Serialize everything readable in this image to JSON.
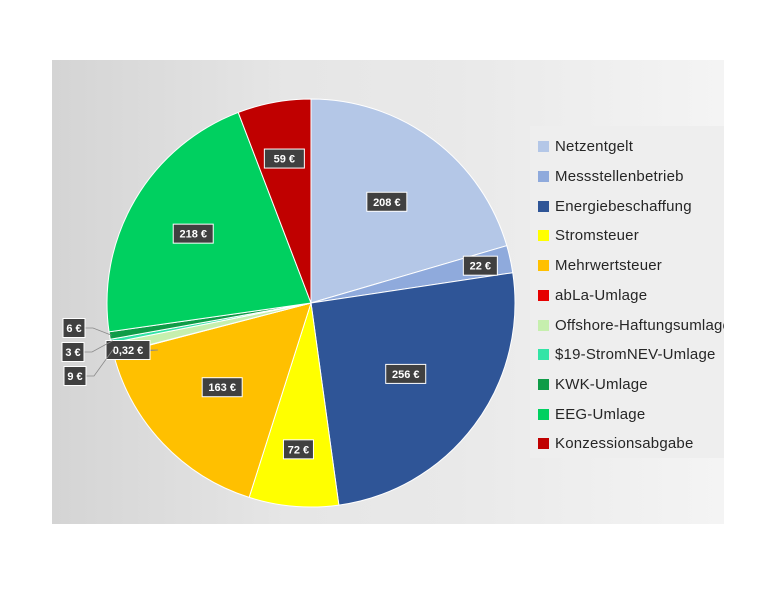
{
  "chart_data": {
    "type": "pie",
    "title": "",
    "start_angle_deg": 0,
    "direction": "clockwise",
    "legend_position": "right",
    "slices": [
      {
        "name": "Netzentgelt",
        "value": 208,
        "label": "208 €",
        "color": "#b4c7e7"
      },
      {
        "name": "Messstellenbetrieb",
        "value": 22,
        "label": "22 €",
        "color": "#8faadc"
      },
      {
        "name": "Energiebeschaffung",
        "value": 256,
        "label": "256 €",
        "color": "#2f5597"
      },
      {
        "name": "Stromsteuer",
        "value": 72,
        "label": "72 €",
        "color": "#ffff00"
      },
      {
        "name": "Mehrwertsteuer",
        "value": 163,
        "label": "163 €",
        "color": "#ffc000"
      },
      {
        "name": "abLa-Umlage",
        "value": 0.32,
        "label": "0,32 €",
        "color": "#e60000"
      },
      {
        "name": "Offshore-Haftungsumlage",
        "value": 9,
        "label": "9 €",
        "color": "#c6efae"
      },
      {
        "name": "$19-StromNEV-Umlage",
        "value": 3,
        "label": "3 €",
        "color": "#33e4a6"
      },
      {
        "name": "KWK-Umlage",
        "value": 6,
        "label": "6 €",
        "color": "#0f9c48"
      },
      {
        "name": "EEG-Umlage",
        "value": 218,
        "label": "218 €",
        "color": "#00d060"
      },
      {
        "name": "Konzessionsabgabe",
        "value": 59,
        "label": "59 €",
        "color": "#c00000"
      }
    ]
  }
}
